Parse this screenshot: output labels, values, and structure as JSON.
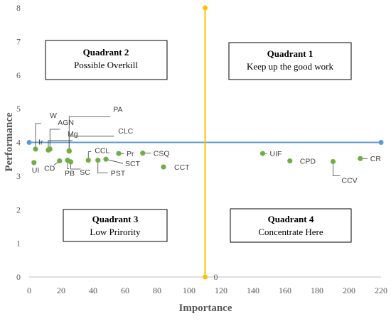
{
  "chart_data": {
    "type": "scatter",
    "title": "",
    "xlabel": "Importance",
    "ylabel": "Performance",
    "xlim": [
      0,
      220
    ],
    "ylim": [
      0,
      8
    ],
    "x_ticks": [
      "0",
      "20",
      "40",
      "60",
      "80",
      "100",
      "120",
      "140",
      "160",
      "180",
      "200",
      "220"
    ],
    "y_ticks": [
      "0",
      "1",
      "2",
      "3",
      "4",
      "5",
      "6",
      "7",
      "8"
    ],
    "grid": false,
    "point_color": "#70ad47",
    "points": [
      {
        "label": "W",
        "x": 4,
        "y": 3.8
      },
      {
        "label": "AGN",
        "x": 13,
        "y": 3.8
      },
      {
        "label": "Mg",
        "x": 12,
        "y": 3.78
      },
      {
        "label": "Ir",
        "x": 12,
        "y": 3.77
      },
      {
        "label": "PA",
        "x": 25,
        "y": 3.75
      },
      {
        "label": "CLC",
        "x": 25,
        "y": 3.74
      },
      {
        "label": "UI",
        "x": 3,
        "y": 3.4
      },
      {
        "label": "CD",
        "x": 19,
        "y": 3.45
      },
      {
        "label": "PB",
        "x": 24,
        "y": 3.47
      },
      {
        "label": "SC",
        "x": 26,
        "y": 3.42
      },
      {
        "label": "CCL",
        "x": 37,
        "y": 3.47
      },
      {
        "label": "PST",
        "x": 43,
        "y": 3.47
      },
      {
        "label": "SCT",
        "x": 48,
        "y": 3.5
      },
      {
        "label": "Pr",
        "x": 56,
        "y": 3.67
      },
      {
        "label": "CSQ",
        "x": 71,
        "y": 3.68
      },
      {
        "label": "CCT",
        "x": 84,
        "y": 3.27
      },
      {
        "label": "UIF",
        "x": 146,
        "y": 3.67
      },
      {
        "label": "CPD",
        "x": 163,
        "y": 3.45
      },
      {
        "label": "CCV",
        "x": 190,
        "y": 3.43
      },
      {
        "label": "CR",
        "x": 207,
        "y": 3.52
      }
    ],
    "reference_lines": {
      "horizontal": {
        "y": 4,
        "x_from": 0,
        "x_to": 220,
        "color": "#5b9bd5"
      },
      "vertical": {
        "x": 110,
        "y_from": 0,
        "y_to": 8,
        "color": "#ffc000",
        "end_label": "0"
      }
    },
    "quadrants": [
      {
        "id": "q1",
        "title": "Quadrant 1",
        "subtitle": "Keep up the good work"
      },
      {
        "id": "q2",
        "title": "Quadrant 2",
        "subtitle": "Possible Overkill"
      },
      {
        "id": "q3",
        "title": "Quadrant 3",
        "subtitle": "Low Prirority"
      },
      {
        "id": "q4",
        "title": "Quadrant 4",
        "subtitle": "Concentrate Here"
      }
    ]
  }
}
